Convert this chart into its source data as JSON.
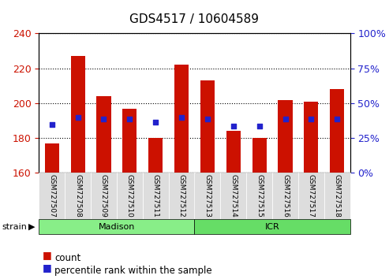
{
  "title": "GDS4517 / 10604589",
  "samples": [
    "GSM727507",
    "GSM727508",
    "GSM727509",
    "GSM727510",
    "GSM727511",
    "GSM727512",
    "GSM727513",
    "GSM727514",
    "GSM727515",
    "GSM727516",
    "GSM727517",
    "GSM727518"
  ],
  "bar_bottoms": [
    160,
    160,
    160,
    160,
    160,
    160,
    160,
    160,
    160,
    160,
    160,
    160
  ],
  "bar_tops": [
    177,
    227,
    204,
    197,
    180,
    222,
    213,
    184,
    180,
    202,
    201,
    208
  ],
  "blue_vals": [
    188,
    192,
    191,
    191,
    189,
    192,
    191,
    187,
    187,
    191,
    191,
    191
  ],
  "ylim_left": [
    160,
    240
  ],
  "ylim_right": [
    0,
    100
  ],
  "yticks_left": [
    160,
    180,
    200,
    220,
    240
  ],
  "yticks_right": [
    0,
    25,
    50,
    75,
    100
  ],
  "bar_color": "#cc1100",
  "blue_color": "#2222cc",
  "bar_width": 0.55,
  "strain_groups": [
    {
      "label": "Madison",
      "start": 0,
      "end": 6,
      "color": "#88ee88"
    },
    {
      "label": "ICR",
      "start": 6,
      "end": 12,
      "color": "#66dd66"
    }
  ],
  "grid_color": "#000000",
  "bg_color": "#ffffff",
  "tick_label_area_color": "#dddddd",
  "title_fontsize": 11,
  "axis_fontsize": 9,
  "legend_fontsize": 8.5
}
